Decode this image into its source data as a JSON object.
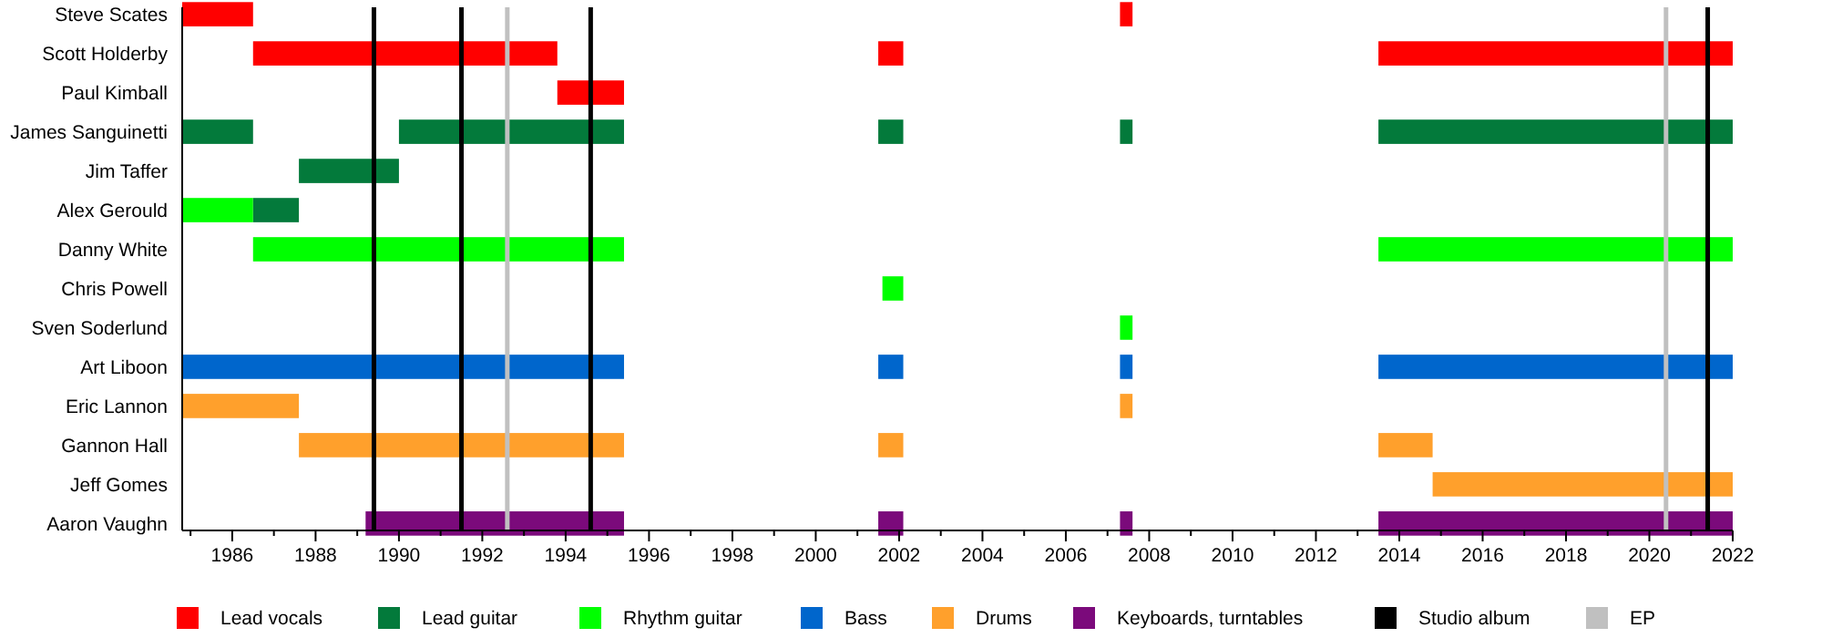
{
  "chart_data": {
    "type": "bar",
    "orientation": "horizontal",
    "categories": [
      "Steve Scates",
      "Scott Holderby",
      "Paul Kimball",
      "James Sanguinetti",
      "Jim Taffer",
      "Alex Gerould",
      "Danny White",
      "Chris Powell",
      "Sven Soderlund",
      "Art Liboon",
      "Eric Lannon",
      "Gannon Hall",
      "Jeff Gomes",
      "Aaron Vaughn"
    ],
    "xlim": [
      1984.8,
      2022
    ],
    "xticks": [
      {
        "value": 1985,
        "label": null
      },
      1986,
      {
        "value": 1987,
        "label": null
      },
      1988,
      {
        "value": 1989,
        "label": null
      },
      1990,
      {
        "value": 1991,
        "label": null
      },
      1992,
      {
        "value": 1993,
        "label": null
      },
      1994,
      {
        "value": 1995,
        "label": null
      },
      1996,
      {
        "value": 1997,
        "label": null
      },
      1998,
      {
        "value": 1999,
        "label": null
      },
      2000,
      {
        "value": 2001,
        "label": null
      },
      2002,
      {
        "value": 2003,
        "label": null
      },
      2004,
      {
        "value": 2005,
        "label": null
      },
      2006,
      {
        "value": 2007,
        "label": null
      },
      2008,
      {
        "value": 2009,
        "label": null
      },
      2010,
      {
        "value": 2011,
        "label": null
      },
      2012,
      {
        "value": 2013,
        "label": null
      },
      2014,
      {
        "value": 2015,
        "label": null
      },
      2016,
      {
        "value": 2017,
        "label": null
      },
      2018,
      {
        "value": 2019,
        "label": null
      },
      2020,
      {
        "value": 2021,
        "label": null
      },
      2022
    ],
    "legend": "bottom",
    "series": [
      {
        "name": "Lead vocals",
        "color": "#ff0000",
        "base": [
          1984.8,
          1986.5,
          1993.8,
          null,
          null,
          null,
          null,
          null,
          null,
          null,
          null,
          null,
          null,
          null
        ],
        "values": [
          1.7,
          7.3,
          1.6,
          null,
          null,
          null,
          null,
          null,
          null,
          null,
          null,
          null,
          null,
          null
        ]
      },
      {
        "color": "#ff0000",
        "base": [
          2007.3,
          2001.5,
          null,
          null,
          null,
          null,
          null,
          null,
          null,
          null,
          null,
          null,
          null,
          null
        ],
        "values": [
          0.3,
          0.6,
          null,
          null,
          null,
          null,
          null,
          null,
          null,
          null,
          null,
          null,
          null,
          null
        ]
      },
      {
        "color": "#ff0000",
        "base": [
          null,
          2013.5,
          null,
          null,
          null,
          null,
          null,
          null,
          null,
          null,
          null,
          null,
          null,
          null
        ],
        "values": [
          null,
          8.5,
          null,
          null,
          null,
          null,
          null,
          null,
          null,
          null,
          null,
          null,
          null,
          null
        ]
      },
      {
        "name": "Lead guitar",
        "color": "#037a3b",
        "base": [
          null,
          null,
          null,
          1984.8,
          1987.6,
          1986.5,
          null,
          null,
          null,
          null,
          null,
          null,
          null,
          null
        ],
        "values": [
          null,
          null,
          null,
          1.7,
          2.4,
          1.1,
          null,
          null,
          null,
          null,
          null,
          null,
          null,
          null
        ]
      },
      {
        "color": "#037a3b",
        "base": [
          null,
          null,
          null,
          1990,
          null,
          null,
          null,
          null,
          null,
          null,
          null,
          null,
          null,
          null
        ],
        "values": [
          null,
          null,
          null,
          5.4,
          null,
          null,
          null,
          null,
          null,
          null,
          null,
          null,
          null,
          null
        ]
      },
      {
        "color": "#037a3b",
        "base": [
          null,
          null,
          null,
          2001.5,
          null,
          null,
          null,
          null,
          null,
          null,
          null,
          null,
          null,
          null
        ],
        "values": [
          null,
          null,
          null,
          0.6,
          null,
          null,
          null,
          null,
          null,
          null,
          null,
          null,
          null,
          null
        ]
      },
      {
        "color": "#037a3b",
        "base": [
          null,
          null,
          null,
          2007.3,
          null,
          null,
          null,
          null,
          null,
          null,
          null,
          null,
          null,
          null
        ],
        "values": [
          null,
          null,
          null,
          0.3,
          null,
          null,
          null,
          null,
          null,
          null,
          null,
          null,
          null,
          null
        ]
      },
      {
        "color": "#037a3b",
        "base": [
          null,
          null,
          null,
          2013.5,
          null,
          null,
          null,
          null,
          null,
          null,
          null,
          null,
          null,
          null
        ],
        "values": [
          null,
          null,
          null,
          8.5,
          null,
          null,
          null,
          null,
          null,
          null,
          null,
          null,
          null,
          null
        ]
      },
      {
        "name": "Rhythm guitar",
        "color": "#00ff00",
        "base": [
          null,
          null,
          null,
          null,
          null,
          1984.8,
          1986.5,
          2001.6,
          2007.3,
          null,
          null,
          null,
          null,
          null
        ],
        "values": [
          null,
          null,
          null,
          null,
          null,
          1.7,
          8.9,
          0.5,
          0.3,
          null,
          null,
          null,
          null,
          null
        ]
      },
      {
        "color": "#00ff00",
        "base": [
          null,
          null,
          null,
          null,
          null,
          null,
          2013.5,
          null,
          null,
          null,
          null,
          null,
          null,
          null
        ],
        "values": [
          null,
          null,
          null,
          null,
          null,
          null,
          8.5,
          null,
          null,
          null,
          null,
          null,
          null,
          null
        ]
      },
      {
        "name": "Bass",
        "color": "#0066cc",
        "base": [
          null,
          null,
          null,
          null,
          null,
          null,
          null,
          null,
          null,
          1984.8,
          null,
          null,
          null,
          null
        ],
        "values": [
          null,
          null,
          null,
          null,
          null,
          null,
          null,
          null,
          null,
          10.6,
          null,
          null,
          null,
          null
        ]
      },
      {
        "color": "#0066cc",
        "base": [
          null,
          null,
          null,
          null,
          null,
          null,
          null,
          null,
          null,
          2001.5,
          null,
          null,
          null,
          null
        ],
        "values": [
          null,
          null,
          null,
          null,
          null,
          null,
          null,
          null,
          null,
          0.6,
          null,
          null,
          null,
          null
        ]
      },
      {
        "color": "#0066cc",
        "base": [
          null,
          null,
          null,
          null,
          null,
          null,
          null,
          null,
          null,
          2007.3,
          null,
          null,
          null,
          null
        ],
        "values": [
          null,
          null,
          null,
          null,
          null,
          null,
          null,
          null,
          null,
          0.3,
          null,
          null,
          null,
          null
        ]
      },
      {
        "color": "#0066cc",
        "base": [
          null,
          null,
          null,
          null,
          null,
          null,
          null,
          null,
          null,
          2013.5,
          null,
          null,
          null,
          null
        ],
        "values": [
          null,
          null,
          null,
          null,
          null,
          null,
          null,
          null,
          null,
          8.5,
          null,
          null,
          null,
          null
        ]
      },
      {
        "name": "Drums",
        "color": "#ffa02c",
        "base": [
          null,
          null,
          null,
          null,
          null,
          null,
          null,
          null,
          null,
          null,
          1984.8,
          1987.6,
          2014.8,
          null
        ],
        "values": [
          null,
          null,
          null,
          null,
          null,
          null,
          null,
          null,
          null,
          null,
          2.8,
          7.8,
          7.2,
          null
        ]
      },
      {
        "color": "#ffa02c",
        "base": [
          null,
          null,
          null,
          null,
          null,
          null,
          null,
          null,
          null,
          null,
          2007.3,
          2001.5,
          null,
          null
        ],
        "values": [
          null,
          null,
          null,
          null,
          null,
          null,
          null,
          null,
          null,
          null,
          0.3,
          0.6,
          null,
          null
        ]
      },
      {
        "color": "#ffa02c",
        "base": [
          null,
          null,
          null,
          null,
          null,
          null,
          null,
          null,
          null,
          null,
          null,
          2013.5,
          null,
          null
        ],
        "values": [
          null,
          null,
          null,
          null,
          null,
          null,
          null,
          null,
          null,
          null,
          null,
          1.3,
          null,
          null
        ]
      },
      {
        "name": "Keyboards, turntables",
        "color": "#7b0a7b",
        "base": [
          null,
          null,
          null,
          null,
          null,
          null,
          null,
          null,
          null,
          null,
          null,
          null,
          null,
          1989.2
        ],
        "values": [
          null,
          null,
          null,
          null,
          null,
          null,
          null,
          null,
          null,
          null,
          null,
          null,
          null,
          6.2
        ]
      },
      {
        "color": "#7b0a7b",
        "base": [
          null,
          null,
          null,
          null,
          null,
          null,
          null,
          null,
          null,
          null,
          null,
          null,
          null,
          2001.5
        ],
        "values": [
          null,
          null,
          null,
          null,
          null,
          null,
          null,
          null,
          null,
          null,
          null,
          null,
          null,
          0.6
        ]
      },
      {
        "color": "#7b0a7b",
        "base": [
          null,
          null,
          null,
          null,
          null,
          null,
          null,
          null,
          null,
          null,
          null,
          null,
          null,
          2007.3
        ],
        "values": [
          null,
          null,
          null,
          null,
          null,
          null,
          null,
          null,
          null,
          null,
          null,
          null,
          null,
          0.3
        ]
      },
      {
        "color": "#7b0a7b",
        "base": [
          null,
          null,
          null,
          null,
          null,
          null,
          null,
          null,
          null,
          null,
          null,
          null,
          null,
          2013.5
        ],
        "values": [
          null,
          null,
          null,
          null,
          null,
          null,
          null,
          null,
          null,
          null,
          null,
          null,
          null,
          8.5
        ]
      }
    ],
    "ref_lines": [
      {
        "axis": "x",
        "value": 1989.4,
        "label": "Studio album",
        "color": "#000000"
      },
      {
        "axis": "x",
        "value": 1991.5,
        "color": "#000000"
      },
      {
        "axis": "x",
        "value": 1994.6,
        "color": "#000000"
      },
      {
        "axis": "x",
        "value": 2021.4,
        "color": "#000000"
      },
      {
        "axis": "x",
        "value": 1992.6,
        "label": "EP",
        "color": "#c0c0c0"
      },
      {
        "axis": "x",
        "value": 2020.4,
        "color": "#c0c0c0"
      }
    ]
  }
}
